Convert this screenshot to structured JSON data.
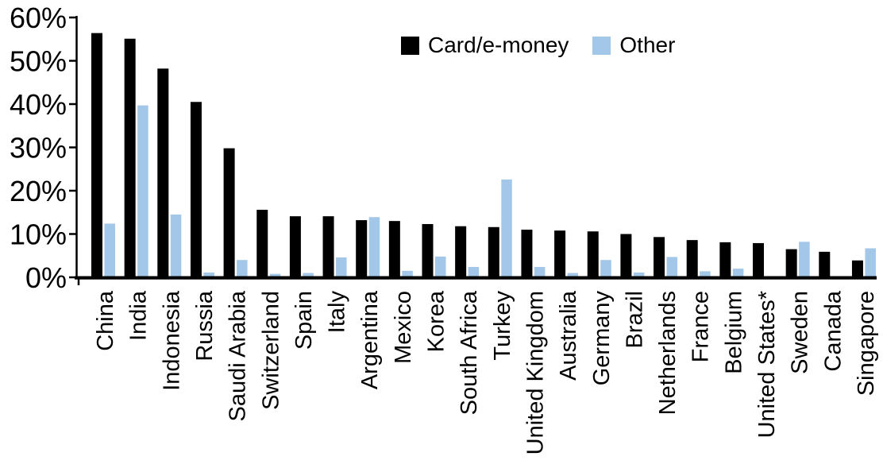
{
  "chart_data": {
    "type": "bar",
    "categories": [
      "China",
      "India",
      "Indonesia",
      "Russia",
      "Saudi Arabia",
      "Switzerland",
      "Spain",
      "Italy",
      "Argentina",
      "Mexico",
      "Korea",
      "South Africa",
      "Turkey",
      "United Kingdom",
      "Australia",
      "Germany",
      "Brazil",
      "Netherlands",
      "France",
      "Belgium",
      "United States*",
      "Sweden",
      "Canada",
      "Singapore"
    ],
    "series": [
      {
        "name": "Card/e-money",
        "color": "#000000",
        "values": [
          56.4,
          55.1,
          48.2,
          40.5,
          29.8,
          15.6,
          14.1,
          14.1,
          13.2,
          13.0,
          12.3,
          11.8,
          11.6,
          11.0,
          10.8,
          10.6,
          10.0,
          9.3,
          8.6,
          8.1,
          7.9,
          6.5,
          5.9,
          3.9
        ]
      },
      {
        "name": "Other",
        "color": "#A3C7E8",
        "values": [
          12.4,
          39.7,
          14.5,
          1.1,
          4.0,
          0.8,
          1.0,
          4.6,
          13.9,
          1.5,
          4.8,
          2.4,
          22.6,
          2.4,
          1.0,
          4.0,
          1.1,
          4.7,
          1.4,
          2.0,
          0.2,
          8.2,
          0,
          6.7
        ]
      }
    ],
    "title": "",
    "xlabel": "",
    "ylabel": "",
    "ylim": [
      0,
      60
    ],
    "y_ticks": [
      "0%",
      "10%",
      "20%",
      "30%",
      "40%",
      "50%",
      "60%"
    ],
    "grid": false,
    "legend_position": "top-center",
    "axis_color": "#000000"
  }
}
